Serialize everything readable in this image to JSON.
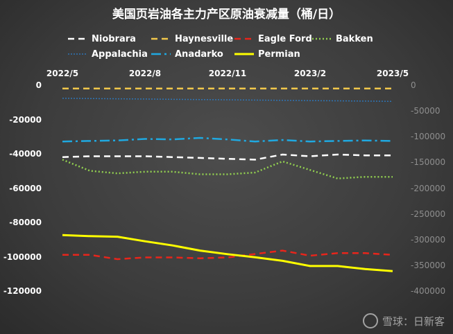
{
  "chart_data": {
    "type": "line",
    "title": "美国页岩油各主力产区原油衰减量（桶/日）",
    "xlabel": "",
    "ylabel": "",
    "x": [
      "2022/5",
      "2022/6",
      "2022/7",
      "2022/8",
      "2022/9",
      "2022/10",
      "2022/11",
      "2022/12",
      "2023/1",
      "2023/2",
      "2023/3",
      "2023/4",
      "2023/5"
    ],
    "x_tick_labels": [
      "2022/5",
      "2022/8",
      "2022/11",
      "2023/2",
      "2023/5"
    ],
    "y_left": {
      "ticks": [
        0,
        -20000,
        -40000,
        -60000,
        -80000,
        -100000,
        -120000
      ],
      "ylim": [
        -120000,
        0
      ]
    },
    "y_right": {
      "ticks": [
        0,
        -50000,
        -100000,
        -150000,
        -200000,
        -250000,
        -300000,
        -350000,
        -400000
      ],
      "ylim": [
        -400000,
        0
      ]
    },
    "series": [
      {
        "name": "Niobrara",
        "axis": "left",
        "color": "#ffffff",
        "style": "dash",
        "values": [
          -41500,
          -41000,
          -41000,
          -41000,
          -41500,
          -42000,
          -42500,
          -43000,
          -40000,
          -41000,
          -40000,
          -40500,
          -40500
        ]
      },
      {
        "name": "Haynesville",
        "axis": "left",
        "color": "#f2c84b",
        "style": "dash",
        "values": [
          -1500,
          -1500,
          -1500,
          -1500,
          -1500,
          -1500,
          -1500,
          -1500,
          -1500,
          -1500,
          -1500,
          -1500,
          -1500
        ]
      },
      {
        "name": "Eagle Ford",
        "axis": "left",
        "color": "#e8251b",
        "style": "dash",
        "values": [
          -98500,
          -98500,
          -101000,
          -100000,
          -100000,
          -100500,
          -100000,
          -98000,
          -96000,
          -99000,
          -97500,
          -97500,
          -98500
        ]
      },
      {
        "name": "Bakken",
        "axis": "left",
        "color": "#92d050",
        "style": "dot",
        "values": [
          -43000,
          -49500,
          -51000,
          -50000,
          -50000,
          -51500,
          -51500,
          -50500,
          -44000,
          -49000,
          -54000,
          -53000,
          -53000
        ]
      },
      {
        "name": "Appalachia",
        "axis": "right",
        "color": "#2e75b6",
        "style": "fine-dot",
        "values": [
          -24000,
          -24500,
          -25000,
          -25500,
          -26000,
          -26500,
          -27000,
          -27500,
          -28000,
          -28500,
          -29000,
          -29500,
          -30000
        ]
      },
      {
        "name": "Anadarko",
        "axis": "right",
        "color": "#1fa9e1",
        "style": "dash-dot",
        "values": [
          -108000,
          -107000,
          -106000,
          -103000,
          -104000,
          -101000,
          -104000,
          -108000,
          -105000,
          -108000,
          -107000,
          -106000,
          -107000
        ]
      },
      {
        "name": "Permian",
        "axis": "right",
        "color": "#ffff00",
        "style": "solid",
        "values": [
          -290000,
          -292000,
          -293000,
          -302000,
          -310000,
          -320000,
          -327000,
          -333000,
          -340000,
          -350000,
          -350000,
          -356000,
          -360000
        ]
      }
    ],
    "legend_position": "top"
  },
  "watermark": {
    "text": "雪球：日新客"
  }
}
